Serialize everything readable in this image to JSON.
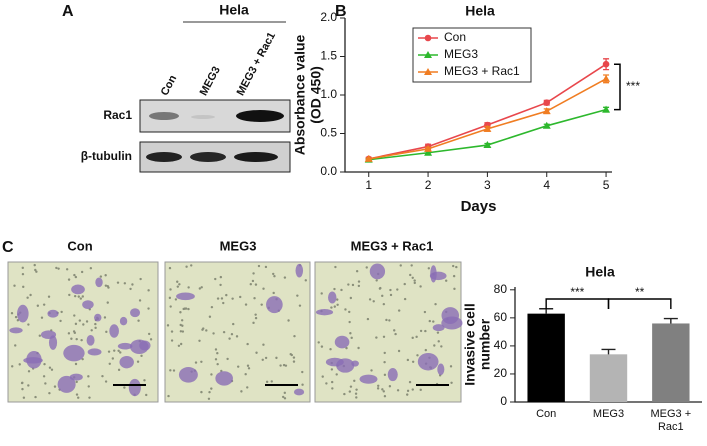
{
  "panels": {
    "a": {
      "label": "A",
      "cell_line": "Hela",
      "lanes": [
        "Con",
        "MEG3",
        "MEG3 + Rac1"
      ],
      "rows": [
        "Rac1",
        "β-tubulin"
      ]
    },
    "b": {
      "label": "B"
    },
    "c": {
      "label": "C",
      "images": [
        "Con",
        "MEG3",
        "MEG3 + Rac1"
      ]
    }
  },
  "chart_data": [
    {
      "type": "line",
      "title": "Hela",
      "x": [
        1,
        2,
        3,
        4,
        5
      ],
      "xlabel": "Days",
      "ylabel": [
        "Absorbance value",
        "(OD 450)"
      ],
      "series": [
        {
          "name": "Con",
          "color": "#e8474c",
          "marker": "circle",
          "values": [
            0.17,
            0.33,
            0.61,
            0.9,
            1.4
          ],
          "errors": [
            0.02,
            0.03,
            0.03,
            0.03,
            0.07
          ]
        },
        {
          "name": "MEG3",
          "color": "#2db82d",
          "marker": "triangle",
          "values": [
            0.16,
            0.25,
            0.35,
            0.6,
            0.81
          ],
          "errors": [
            0.01,
            0.02,
            0.02,
            0.02,
            0.03
          ]
        },
        {
          "name": "MEG3 + Rac1",
          "color": "#f07d22",
          "marker": "triangle",
          "values": [
            0.17,
            0.3,
            0.56,
            0.79,
            1.21
          ],
          "errors": [
            0.01,
            0.02,
            0.03,
            0.03,
            0.05
          ]
        }
      ],
      "xlim": [
        0.6,
        5.1
      ],
      "xticks": [
        1,
        2,
        3,
        4,
        5
      ],
      "ylim": [
        0,
        2.0
      ],
      "yticks": [
        {
          "value": 0,
          "label": "0.0"
        },
        0.5,
        {
          "value": 1,
          "label": "1.0"
        },
        1.5,
        {
          "value": 2,
          "label": "2.0"
        }
      ],
      "legend": "upper left",
      "annotations": [
        "***"
      ]
    },
    {
      "type": "bar",
      "title": "Hela",
      "categories": [
        "Con",
        "MEG3",
        "MEG3 + Rac1"
      ],
      "values": [
        63,
        34,
        56
      ],
      "errors": [
        3.5,
        3.5,
        3.5
      ],
      "colors": [
        "#000000",
        "#b4b4b4",
        "#808080"
      ],
      "ylabel": [
        "Invasive cell",
        "number"
      ],
      "ylim": [
        0,
        82
      ],
      "yticks": [
        0,
        20,
        40,
        60,
        80
      ],
      "annotations": [
        "***",
        "**"
      ]
    }
  ]
}
